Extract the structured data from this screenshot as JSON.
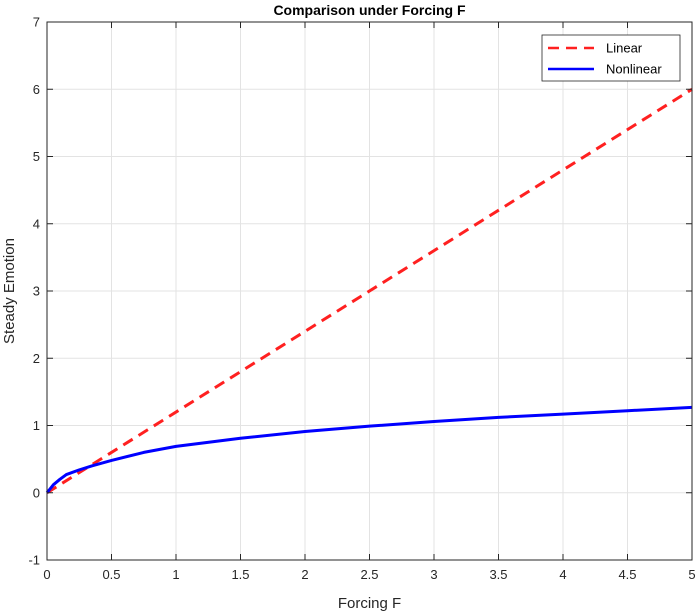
{
  "chart_data": {
    "type": "line",
    "title": "Comparison under Forcing F",
    "xlabel": "Forcing F",
    "ylabel": "Steady Emotion",
    "xlim": [
      0,
      5
    ],
    "ylim": [
      -1,
      7
    ],
    "xticks": [
      "0",
      "0.5",
      "1",
      "1.5",
      "2",
      "2.5",
      "3",
      "3.5",
      "4",
      "4.5",
      "5"
    ],
    "yticks": [
      "-1",
      "0",
      "1",
      "2",
      "3",
      "4",
      "5",
      "6",
      "7"
    ],
    "grid": true,
    "box": true,
    "legend_position": "top-right",
    "series": [
      {
        "name": "Linear",
        "color": "#ff2020",
        "style": "dashed",
        "x": [
          0,
          5
        ],
        "y": [
          0,
          6
        ]
      },
      {
        "name": "Nonlinear",
        "color": "#0000ff",
        "style": "solid",
        "x": [
          0,
          0.05,
          0.1,
          0.15,
          0.25,
          0.35,
          0.5,
          0.75,
          1,
          1.5,
          2,
          2.5,
          3,
          3.5,
          4,
          4.5,
          5
        ],
        "y": [
          0,
          0.12,
          0.2,
          0.27,
          0.34,
          0.4,
          0.48,
          0.6,
          0.69,
          0.81,
          0.91,
          0.99,
          1.06,
          1.12,
          1.17,
          1.22,
          1.27
        ]
      }
    ]
  }
}
